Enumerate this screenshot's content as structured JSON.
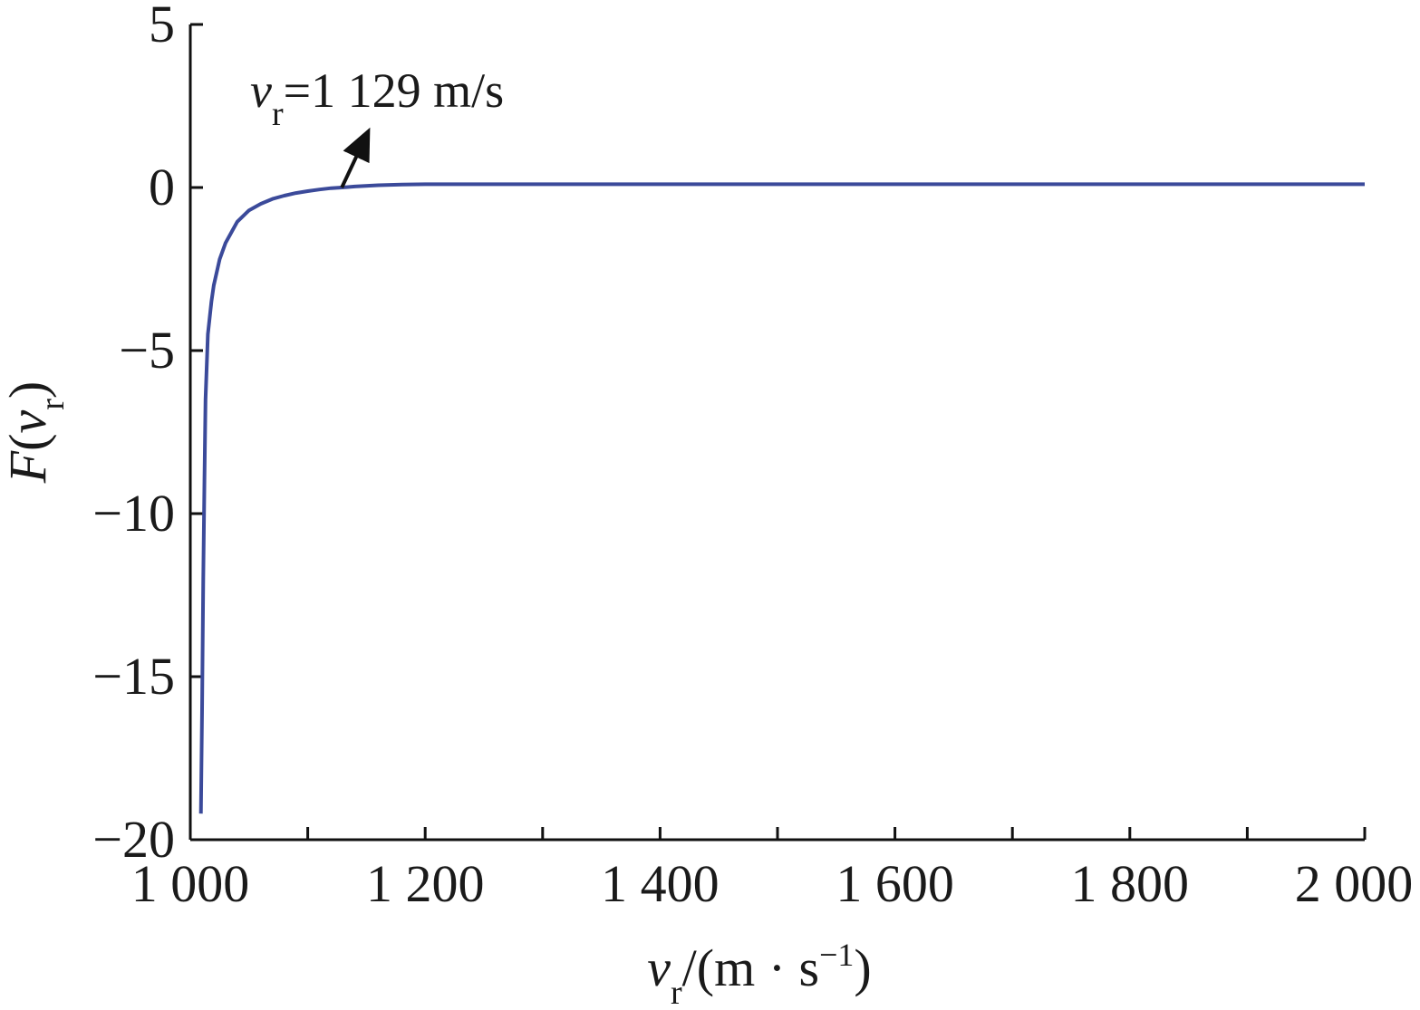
{
  "chart_data": {
    "type": "line",
    "xlim": [
      1000,
      2000
    ],
    "ylim": [
      -20,
      5
    ],
    "x_ticks": [
      1000,
      1200,
      1400,
      1600,
      1800,
      2000
    ],
    "x_tick_labels": [
      "1 000",
      "1 200",
      "1 400",
      "1 600",
      "1 800",
      "2 000"
    ],
    "x_minor_ticks": [
      1100,
      1300,
      1500,
      1700,
      1900
    ],
    "y_ticks": [
      5,
      0,
      -5,
      -10,
      -15,
      -20
    ],
    "y_tick_labels": [
      "5",
      "0",
      "−5",
      "−10",
      "−15",
      "−20"
    ],
    "xlabel": {
      "var": "v",
      "sub": "r",
      "unit_pre": "/(m · s",
      "unit_sup": "−1",
      "unit_post": ")"
    },
    "ylabel": {
      "pre": "F(",
      "var": "v",
      "sub": "r",
      "post": ")"
    },
    "grid": false,
    "series": [
      {
        "color": "#3b4a9a",
        "x": [
          1009,
          1010,
          1011,
          1012,
          1013,
          1015,
          1018,
          1020,
          1025,
          1030,
          1040,
          1050,
          1060,
          1070,
          1080,
          1090,
          1100,
          1110,
          1120,
          1129,
          1140,
          1160,
          1180,
          1200,
          1300,
          1400,
          1500,
          1600,
          1700,
          1800,
          1900,
          2000
        ],
        "y": [
          -19.2,
          -16.0,
          -12.0,
          -9.0,
          -6.5,
          -4.5,
          -3.5,
          -3.0,
          -2.2,
          -1.7,
          -1.05,
          -0.7,
          -0.5,
          -0.35,
          -0.25,
          -0.17,
          -0.11,
          -0.06,
          -0.02,
          0.0,
          0.03,
          0.07,
          0.09,
          0.1,
          0.1,
          0.1,
          0.1,
          0.1,
          0.1,
          0.1,
          0.1,
          0.1
        ]
      }
    ],
    "annotations": [
      {
        "var": "v",
        "sub": "r",
        "text": "=1 129 m/s",
        "x": 1129,
        "y": 0
      }
    ]
  }
}
